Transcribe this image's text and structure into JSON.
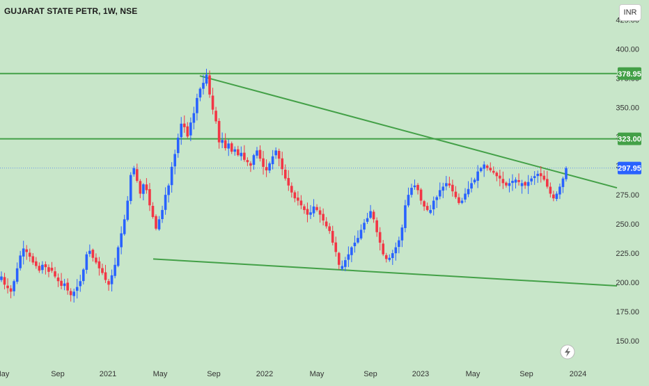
{
  "header": {
    "title": "GUJARAT STATE PETR, 1W, NSE",
    "currency": "INR"
  },
  "colors": {
    "background": "#c8e6c9",
    "bull": "#2962ff",
    "bear": "#f23645",
    "line": "#43a047",
    "price_label": "#2962ff",
    "level_label": "#43a047"
  },
  "icons": {
    "replay": "lightning-icon"
  },
  "chart_data": {
    "type": "candlestick",
    "title": "GUJARAT STATE PETR, 1W, NSE",
    "xlabel": "",
    "ylabel": "",
    "ylim": [
      132,
      442
    ],
    "grid": false,
    "y_ticks": [
      150,
      175,
      200,
      225,
      250,
      275,
      300,
      325,
      350,
      375,
      400,
      425
    ],
    "y_tick_labels": [
      "150.00",
      "175.00",
      "200.00",
      "225.00",
      "250.00",
      "275.00",
      "300.00",
      "325.00",
      "350.00",
      "375.00",
      "400.00",
      "425.00"
    ],
    "x_ticks": [
      "May",
      "Sep",
      "2021",
      "May",
      "Sep",
      "2022",
      "May",
      "Sep",
      "2023",
      "May",
      "Sep",
      "2024"
    ],
    "last_price": 297.95,
    "last_price_label": "297.95",
    "horizontal_levels": [
      {
        "value": 378.95,
        "label": "378.95"
      },
      {
        "value": 323.0,
        "label": "323.00"
      }
    ],
    "trendlines": [
      {
        "from": [
          "2021-08",
          377
        ],
        "to": [
          "2024-01",
          281
        ]
      },
      {
        "from": [
          "2021-04",
          220
        ],
        "to": [
          "2024-01",
          197
        ]
      }
    ],
    "weekly_close_path": [
      205,
      198,
      195,
      192,
      201,
      212,
      223,
      229,
      226,
      222,
      217,
      214,
      210,
      215,
      213,
      209,
      210,
      205,
      201,
      197,
      199,
      193,
      189,
      192,
      196,
      201,
      211,
      224,
      227,
      221,
      217,
      212,
      208,
      202,
      198,
      206,
      215,
      230,
      242,
      254,
      270,
      292,
      298,
      287,
      276,
      284,
      279,
      266,
      256,
      246,
      254,
      262,
      275,
      283,
      299,
      310,
      324,
      336,
      333,
      325,
      337,
      345,
      358,
      366,
      371,
      378,
      361,
      348,
      338,
      320,
      322,
      315,
      319,
      312,
      314,
      309,
      311,
      305,
      303,
      300,
      309,
      313,
      306,
      299,
      296,
      302,
      308,
      313,
      306,
      297,
      289,
      283,
      277,
      272,
      270,
      266,
      262,
      258,
      260,
      265,
      262,
      258,
      253,
      248,
      244,
      234,
      226,
      215,
      214,
      219,
      224,
      230,
      234,
      238,
      245,
      251,
      255,
      261,
      254,
      243,
      234,
      224,
      220,
      221,
      225,
      230,
      236,
      247,
      266,
      275,
      281,
      283,
      279,
      270,
      265,
      262,
      262,
      270,
      273,
      279,
      282,
      285,
      283,
      278,
      273,
      268,
      270,
      276,
      280,
      285,
      288,
      295,
      298,
      301,
      298,
      296,
      294,
      291,
      289,
      285,
      283,
      285,
      287,
      288,
      286,
      285,
      283,
      286,
      289,
      291,
      293,
      291,
      288,
      282,
      276,
      272,
      276,
      282,
      289,
      298
    ]
  }
}
